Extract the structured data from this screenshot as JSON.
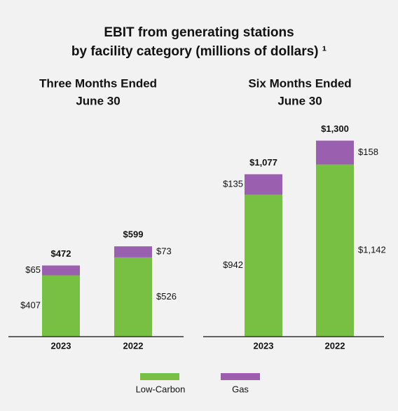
{
  "title": [
    "EBIT from generating stations",
    "by facility category (millions of dollars) ¹"
  ],
  "chart_data": [
    {
      "type": "bar",
      "stacked": true,
      "subtitle": [
        "Three Months Ended",
        "June 30"
      ],
      "categories": [
        "2023",
        "2022"
      ],
      "ylim": [
        0,
        1400
      ],
      "series": [
        {
          "name": "Low-Carbon",
          "color": "#77c043",
          "values": [
            407,
            526
          ],
          "value_labels": [
            "$407",
            "$526"
          ]
        },
        {
          "name": "Gas",
          "color": "#9b5fb0",
          "values": [
            65,
            73
          ],
          "value_labels": [
            "$65",
            "$73"
          ]
        }
      ],
      "totals": [
        472,
        599
      ],
      "total_labels": [
        "$472",
        "$599"
      ]
    },
    {
      "type": "bar",
      "stacked": true,
      "subtitle": [
        "Six Months Ended",
        "June 30"
      ],
      "categories": [
        "2023",
        "2022"
      ],
      "ylim": [
        0,
        1400
      ],
      "series": [
        {
          "name": "Low-Carbon",
          "color": "#77c043",
          "values": [
            942,
            1142
          ],
          "value_labels": [
            "$942",
            "$1,142"
          ]
        },
        {
          "name": "Gas",
          "color": "#9b5fb0",
          "values": [
            135,
            158
          ],
          "value_labels": [
            "$135",
            "$158"
          ]
        }
      ],
      "totals": [
        1077,
        1300
      ],
      "total_labels": [
        "$1,077",
        "$1,300"
      ]
    }
  ]
}
